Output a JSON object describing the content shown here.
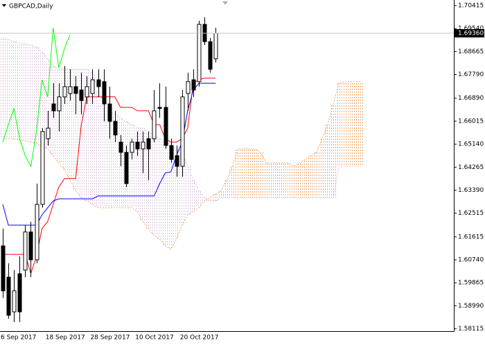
{
  "chart_data": {
    "type": "candlestick",
    "title": "GBPCAD,Daily",
    "categories": [
      "6 Sep 2017",
      null,
      null,
      null,
      null,
      null,
      null,
      null,
      "18 Sep 2017",
      null,
      null,
      null,
      null,
      null,
      null,
      null,
      "28 Sep 2017",
      null,
      null,
      null,
      null,
      null,
      null,
      null,
      "10 Oct 2017",
      null,
      null,
      null,
      null,
      null,
      null,
      null,
      "20 Oct 2017",
      null,
      null,
      null,
      null,
      null,
      null,
      null,
      null,
      null,
      null,
      null,
      null,
      null,
      null,
      null,
      null,
      null,
      null,
      null,
      null,
      null,
      null,
      null,
      null,
      null,
      null,
      null,
      null,
      null,
      null,
      null,
      null
    ],
    "open": [
      1.6127,
      1.6008,
      1.5876,
      1.6021,
      1.6035,
      1.618,
      1.6074,
      1.6285,
      1.6535,
      1.6667,
      1.6641,
      1.6694,
      1.6707,
      1.6733,
      1.672,
      1.6694,
      1.6707,
      1.6759,
      1.6752,
      1.6667,
      1.6601,
      1.6522,
      1.6483,
      1.6483,
      1.6522,
      1.6496,
      1.6535,
      1.6535,
      1.6654,
      1.6654,
      1.6509,
      1.647,
      1.643,
      1.6707,
      1.6759,
      1.6752,
      1.697,
      1.6904,
      1.6839,
      null,
      null,
      null,
      null,
      null,
      null,
      null,
      null,
      null,
      null,
      null,
      null,
      null,
      null,
      null,
      null,
      null,
      null,
      null,
      null,
      null,
      null,
      null,
      null,
      null,
      null
    ],
    "high": [
      1.6193,
      1.6061,
      1.6035,
      1.6087,
      1.6206,
      1.6219,
      1.6364,
      1.6575,
      1.6641,
      1.6746,
      1.6746,
      1.6812,
      1.6799,
      1.6773,
      1.6786,
      1.6773,
      1.6799,
      1.6799,
      1.6799,
      1.6733,
      1.6641,
      1.6549,
      1.6509,
      1.6535,
      1.6562,
      1.6562,
      1.6562,
      1.672,
      1.6746,
      1.6733,
      1.6535,
      1.6509,
      1.672,
      1.6786,
      1.6799,
      1.6984,
      1.6997,
      1.6918,
      1.6957,
      null,
      null,
      null,
      null,
      null,
      null,
      null,
      null,
      null,
      null,
      null,
      null,
      null,
      null,
      null,
      null,
      null,
      null,
      null,
      null,
      null,
      null,
      null,
      null,
      null,
      null
    ],
    "low": [
      1.5929,
      1.585,
      1.5837,
      1.5837,
      1.6008,
      1.6008,
      1.6061,
      1.6272,
      1.6509,
      1.6614,
      1.6562,
      1.6667,
      1.668,
      1.6628,
      1.6628,
      1.6667,
      1.6667,
      1.6694,
      1.6601,
      1.6535,
      1.6522,
      1.643,
      1.6351,
      1.6456,
      1.647,
      1.6404,
      1.6377,
      1.6522,
      1.6614,
      1.6496,
      1.6443,
      1.639,
      1.639,
      1.6641,
      1.6694,
      1.6733,
      1.6891,
      1.6786,
      1.6825,
      null,
      null,
      null,
      null,
      null,
      null,
      null,
      null,
      null,
      null,
      null,
      null,
      null,
      null,
      null,
      null,
      null,
      null,
      null,
      null,
      null,
      null,
      null,
      null,
      null,
      null
    ],
    "close": [
      1.5956,
      1.5863,
      1.5956,
      1.5876,
      1.618,
      1.6074,
      1.6285,
      1.6562,
      1.6575,
      1.6641,
      1.6694,
      1.6733,
      1.6733,
      1.6707,
      1.668,
      1.6733,
      1.6759,
      1.6733,
      1.6667,
      1.6601,
      1.6549,
      1.6483,
      1.6364,
      1.6522,
      1.6496,
      1.6522,
      1.6496,
      1.6641,
      1.665,
      1.6509,
      1.6456,
      1.643,
      1.6694,
      1.6752,
      1.672,
      1.697,
      1.6904,
      1.6799,
      1.6936,
      null,
      null,
      null,
      null,
      null,
      null,
      null,
      null,
      null,
      null,
      null,
      null,
      null,
      null,
      null,
      null,
      null,
      null,
      null,
      null,
      null,
      null,
      null,
      null,
      null,
      null
    ],
    "up_color": "#ffffff",
    "down_color": "#000000",
    "wick_color": "#000000",
    "lines": [
      {
        "color": "#ff0000",
        "values": [
          1.6095,
          1.6095,
          1.6095,
          1.6095,
          1.6095,
          1.6021,
          1.6087,
          1.6193,
          1.6219,
          1.6285,
          1.6351,
          1.6383,
          1.6383,
          1.6383,
          1.6588,
          1.6694,
          1.6694,
          1.6694,
          1.6694,
          1.6694,
          1.6694,
          1.6654,
          1.6654,
          1.6654,
          1.6641,
          1.6641,
          1.6641,
          1.6588,
          1.6588,
          1.6535,
          1.6522,
          1.6522,
          1.6535,
          1.6575,
          1.6746,
          1.6759,
          1.6765,
          1.6765,
          1.6765,
          null,
          null,
          null,
          null,
          null,
          null,
          null,
          null,
          null,
          null,
          null,
          null,
          null,
          null,
          null,
          null,
          null,
          null,
          null,
          null,
          null,
          null,
          null,
          null,
          null,
          null
        ]
      },
      {
        "color": "#0000ff",
        "values": [
          1.6285,
          1.6206,
          1.6206,
          1.6206,
          1.6206,
          1.6206,
          1.6206,
          1.6245,
          1.6272,
          1.6298,
          1.6306,
          1.6306,
          1.6306,
          1.6306,
          1.6306,
          1.6306,
          1.6306,
          1.6317,
          1.6317,
          1.6317,
          1.6317,
          1.6317,
          1.6317,
          1.6317,
          1.6317,
          1.6317,
          1.6317,
          1.6317,
          1.6364,
          1.6404,
          1.6409,
          1.647,
          1.6522,
          1.6641,
          1.672,
          1.6746,
          1.6746,
          1.6746,
          1.6746,
          null,
          null,
          null,
          null,
          null,
          null,
          null,
          null,
          null,
          null,
          null,
          null,
          null,
          null,
          null,
          null,
          null,
          null,
          null,
          null,
          null,
          null,
          null,
          null,
          null,
          null
        ]
      },
      {
        "color": "#00ff00",
        "values": [
          1.6522,
          1.6588,
          1.6649,
          1.6535,
          1.647,
          1.643,
          1.6562,
          1.6759,
          1.6694,
          1.6957,
          1.6804,
          1.6878,
          1.6931,
          null,
          null,
          null,
          null,
          null,
          null,
          null,
          null,
          null,
          null,
          null,
          null,
          null,
          null,
          null,
          null,
          null,
          null,
          null,
          null,
          null,
          null,
          null,
          null,
          null,
          null,
          null,
          null,
          null,
          null,
          null,
          null,
          null,
          null,
          null,
          null,
          null,
          null,
          null,
          null,
          null,
          null,
          null,
          null,
          null,
          null,
          null,
          null,
          null,
          null,
          null,
          null
        ]
      }
    ],
    "cloud": {
      "span_a": {
        "color": "#f4a460",
        "values": [
          1.6535,
          1.6535,
          1.6533,
          1.653,
          1.6527,
          1.6522,
          1.6517,
          1.6509,
          1.6496,
          1.647,
          1.6443,
          1.6417,
          1.6377,
          1.6338,
          1.6311,
          1.6298,
          1.6285,
          1.6272,
          1.6272,
          1.6272,
          1.6272,
          1.6272,
          1.6272,
          1.6272,
          1.6259,
          1.6219,
          1.6193,
          1.6166,
          1.6153,
          1.6127,
          1.6114,
          1.6153,
          1.6206,
          1.6245,
          1.6259,
          1.6272,
          1.6298,
          1.6311,
          1.6325,
          1.6338,
          1.6377,
          1.643,
          1.6496,
          1.6496,
          1.6496,
          1.6496,
          1.6483,
          1.6443,
          1.6443,
          1.6443,
          1.6443,
          1.6443,
          1.643,
          1.6443,
          1.6456,
          1.647,
          1.6483,
          1.6535,
          1.6588,
          1.6667,
          1.6746,
          1.6752,
          1.6752,
          1.6752,
          1.6752
        ]
      },
      "span_b": {
        "color": "#d8bfd8",
        "values": [
          1.6918,
          1.6912,
          1.6904,
          1.6899,
          1.6897,
          1.6891,
          1.6883,
          1.6865,
          1.6839,
          1.6812,
          1.6799,
          1.6799,
          1.6799,
          1.6799,
          1.6799,
          1.6799,
          1.6786,
          1.672,
          1.6667,
          1.6641,
          1.6628,
          1.6614,
          1.6601,
          1.6588,
          1.6575,
          1.6575,
          1.6562,
          1.6549,
          1.6535,
          1.6522,
          1.6509,
          1.6496,
          1.6483,
          1.643,
          1.6377,
          1.6338,
          1.6311,
          1.6298,
          1.6298,
          1.6311,
          1.6311,
          1.6311,
          1.6311,
          1.6311,
          1.6311,
          1.6311,
          1.6311,
          1.6311,
          1.6311,
          1.6311,
          1.6311,
          1.6311,
          1.6311,
          1.6311,
          1.6311,
          1.6311,
          1.6311,
          1.6311,
          1.6311,
          1.6311,
          1.643,
          1.643,
          1.643,
          1.643,
          1.643
        ]
      }
    },
    "last_price": {
      "value": 1.6936,
      "label": "1.69360"
    },
    "ylim": [
      1.58026,
      1.70626
    ],
    "yticks": [
      1.70415,
      {
        "value": 1.6954,
        "label": "1.69540"
      },
      1.68665,
      {
        "value": 1.6779,
        "label": "1.67790"
      },
      {
        "value": 1.6689,
        "label": "1.66890"
      },
      1.66015,
      {
        "value": 1.6514,
        "label": "1.65140"
      },
      1.64265,
      {
        "value": 1.6339,
        "label": "1.63390"
      },
      1.62515,
      1.61615,
      {
        "value": 1.6074,
        "label": "1.60740"
      },
      1.59865,
      {
        "value": 1.5899,
        "label": "1.58990"
      },
      1.58115
    ]
  }
}
